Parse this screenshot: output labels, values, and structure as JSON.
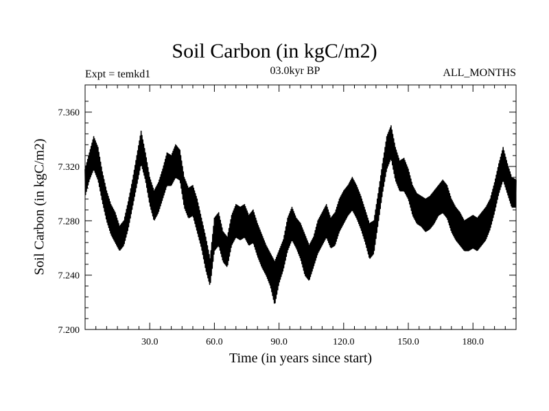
{
  "chart_data": {
    "type": "line",
    "title": "Soil Carbon (in kgC/m2)",
    "subtitle_left": "Expt = temkd1",
    "subtitle_center": "03.0kyr BP",
    "subtitle_right": "ALL_MONTHS",
    "xlabel": "Time (in years since start)",
    "ylabel": "Soil Carbon (in kgC/m2)",
    "xlim": [
      0,
      200
    ],
    "ylim": [
      7.2,
      7.38
    ],
    "x_ticks": [
      30,
      60,
      90,
      120,
      150,
      180
    ],
    "x_tick_labels": [
      "30.0",
      "60.0",
      "90.0",
      "120.0",
      "150.0",
      "180.0"
    ],
    "y_ticks": [
      7.2,
      7.24,
      7.28,
      7.32,
      7.36
    ],
    "y_tick_labels": [
      "7.200",
      "7.240",
      "7.280",
      "7.320",
      "7.360"
    ],
    "grid": false,
    "line_color": "#000000",
    "series": [
      {
        "x": [
          0,
          2,
          4,
          6,
          8,
          10,
          12,
          14,
          16,
          18,
          20,
          22,
          24,
          26,
          28,
          30,
          32,
          34,
          36,
          38,
          40,
          42,
          44,
          46,
          48,
          50,
          52,
          54,
          56,
          58,
          60,
          62,
          64,
          66,
          68,
          70,
          72,
          74,
          76,
          78,
          80,
          82,
          84,
          86,
          88,
          90,
          92,
          94,
          96,
          98,
          100,
          102,
          104,
          106,
          108,
          110,
          112,
          114,
          116,
          118,
          120,
          122,
          124,
          126,
          128,
          130,
          132,
          134,
          136,
          138,
          140,
          142,
          144,
          146,
          148,
          150,
          152,
          154,
          156,
          158,
          160,
          162,
          164,
          166,
          168,
          170,
          172,
          174,
          176,
          178,
          180,
          182,
          184,
          186,
          188,
          190,
          192,
          194,
          196,
          198,
          200
        ],
        "y_upper": [
          7.318,
          7.33,
          7.342,
          7.334,
          7.316,
          7.302,
          7.292,
          7.286,
          7.276,
          7.28,
          7.294,
          7.31,
          7.328,
          7.346,
          7.33,
          7.312,
          7.302,
          7.308,
          7.318,
          7.33,
          7.328,
          7.336,
          7.332,
          7.312,
          7.304,
          7.306,
          7.296,
          7.282,
          7.268,
          7.252,
          7.282,
          7.286,
          7.272,
          7.268,
          7.284,
          7.292,
          7.29,
          7.292,
          7.284,
          7.288,
          7.278,
          7.27,
          7.262,
          7.256,
          7.25,
          7.258,
          7.266,
          7.282,
          7.29,
          7.282,
          7.278,
          7.27,
          7.262,
          7.268,
          7.28,
          7.286,
          7.292,
          7.282,
          7.286,
          7.296,
          7.302,
          7.306,
          7.312,
          7.306,
          7.298,
          7.288,
          7.278,
          7.28,
          7.3,
          7.322,
          7.342,
          7.35,
          7.334,
          7.324,
          7.326,
          7.318,
          7.306,
          7.3,
          7.298,
          7.296,
          7.298,
          7.302,
          7.306,
          7.31,
          7.306,
          7.296,
          7.29,
          7.286,
          7.28,
          7.282,
          7.284,
          7.282,
          7.286,
          7.29,
          7.296,
          7.308,
          7.322,
          7.334,
          7.322,
          7.312,
          7.31
        ],
        "y_lower": [
          7.298,
          7.31,
          7.318,
          7.31,
          7.294,
          7.28,
          7.27,
          7.264,
          7.258,
          7.262,
          7.274,
          7.29,
          7.306,
          7.322,
          7.31,
          7.292,
          7.28,
          7.286,
          7.296,
          7.306,
          7.306,
          7.312,
          7.31,
          7.29,
          7.282,
          7.284,
          7.272,
          7.26,
          7.244,
          7.232,
          7.258,
          7.262,
          7.25,
          7.246,
          7.262,
          7.268,
          7.266,
          7.268,
          7.262,
          7.264,
          7.254,
          7.246,
          7.24,
          7.232,
          7.218,
          7.234,
          7.244,
          7.258,
          7.266,
          7.26,
          7.252,
          7.24,
          7.236,
          7.246,
          7.256,
          7.262,
          7.268,
          7.26,
          7.262,
          7.272,
          7.278,
          7.284,
          7.288,
          7.282,
          7.274,
          7.264,
          7.252,
          7.256,
          7.278,
          7.3,
          7.318,
          7.326,
          7.31,
          7.302,
          7.302,
          7.296,
          7.284,
          7.278,
          7.276,
          7.272,
          7.274,
          7.278,
          7.284,
          7.286,
          7.282,
          7.272,
          7.266,
          7.262,
          7.258,
          7.258,
          7.26,
          7.258,
          7.262,
          7.266,
          7.274,
          7.286,
          7.3,
          7.31,
          7.3,
          7.29,
          7.29
        ]
      }
    ]
  }
}
